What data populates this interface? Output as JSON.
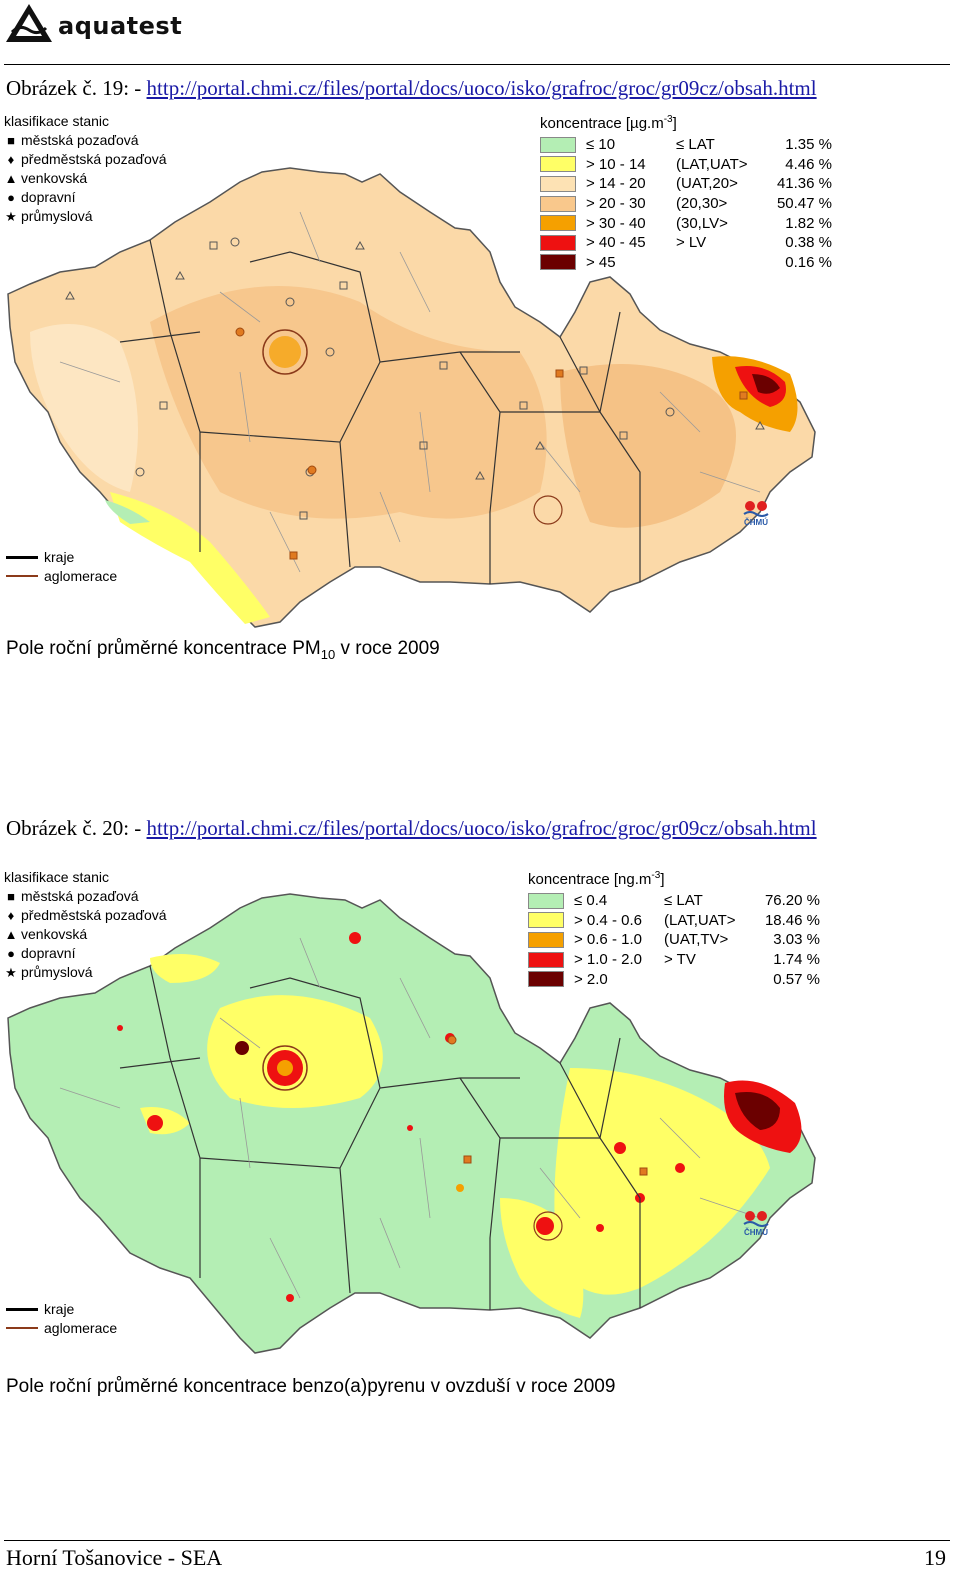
{
  "header": {
    "logo_text": "aquatest"
  },
  "figures": [
    {
      "caption_prefix": "Obrázek č. 19: - ",
      "caption_link": "http://portal.chmi.cz/files/portal/docs/uoco/isko/grafroc/groc/gr09cz/obsah.html",
      "station_legend": {
        "title": "klasifikace stanic",
        "items": [
          "městská pozaďová",
          "předměstská pozaďová",
          "venkovská",
          "dopravní",
          "průmyslová"
        ]
      },
      "conc_legend": {
        "title_text": "koncentrace [µg.m",
        "title_sup": "-3",
        "title_end": "]",
        "rows": [
          {
            "range": "≤ 10",
            "class": "≤ LAT",
            "pct": "1.35 %",
            "color": "#b4eeb4"
          },
          {
            "range": "> 10 - 14",
            "class": "(LAT,UAT>",
            "pct": "4.46 %",
            "color": "#ffff66"
          },
          {
            "range": "> 14 - 20",
            "class": "(UAT,20>",
            "pct": "41.36 %",
            "color": "#fde2b4"
          },
          {
            "range": "> 20 - 30",
            "class": "(20,30>",
            "pct": "50.47 %",
            "color": "#f9c88c"
          },
          {
            "range": "> 30 - 40",
            "class": "(30,LV>",
            "pct": "1.82 %",
            "color": "#f5a000"
          },
          {
            "range": "> 40 - 45",
            "class": "> LV",
            "pct": "0.38 %",
            "color": "#ee1111"
          },
          {
            "range": "> 45",
            "class": "",
            "pct": "0.16 %",
            "color": "#6b0000"
          }
        ]
      },
      "line_legend": {
        "kraje": "kraje",
        "aglomerace": "aglomerace"
      },
      "map_title_pre": "Pole roční průměrné koncentrace PM",
      "map_title_sub": "10",
      "map_title_post": " v roce 2009",
      "chmu_label": "ČHMÚ"
    },
    {
      "caption_prefix": "Obrázek č. 20: - ",
      "caption_link": "http://portal.chmi.cz/files/portal/docs/uoco/isko/grafroc/groc/gr09cz/obsah.html",
      "station_legend": {
        "title": "klasifikace stanic",
        "items": [
          "městská pozaďová",
          "předměstská pozaďová",
          "venkovská",
          "dopravní",
          "průmyslová"
        ]
      },
      "conc_legend": {
        "title_text": "koncentrace [ng.m",
        "title_sup": "-3",
        "title_end": "]",
        "rows": [
          {
            "range": "≤ 0.4",
            "class": "≤ LAT",
            "pct": "76.20 %",
            "color": "#b4eeb4"
          },
          {
            "range": "> 0.4 - 0.6",
            "class": "(LAT,UAT>",
            "pct": "18.46 %",
            "color": "#ffff66"
          },
          {
            "range": "> 0.6 - 1.0",
            "class": "(UAT,TV>",
            "pct": "3.03 %",
            "color": "#f5a000"
          },
          {
            "range": "> 1.0 - 2.0",
            "class": "> TV",
            "pct": "1.74 %",
            "color": "#ee1111"
          },
          {
            "range": "> 2.0",
            "class": "",
            "pct": "0.57 %",
            "color": "#6b0000"
          }
        ]
      },
      "line_legend": {
        "kraje": "kraje",
        "aglomerace": "aglomerace"
      },
      "map_title_pre": "Pole roční průměrné koncentrace benzo(a)pyrenu v ovzduší v roce 2009",
      "map_title_sub": "",
      "map_title_post": "",
      "chmu_label": "ČHMÚ"
    }
  ],
  "footer": {
    "left": "Horní Tošanovice - SEA",
    "page": "19"
  }
}
